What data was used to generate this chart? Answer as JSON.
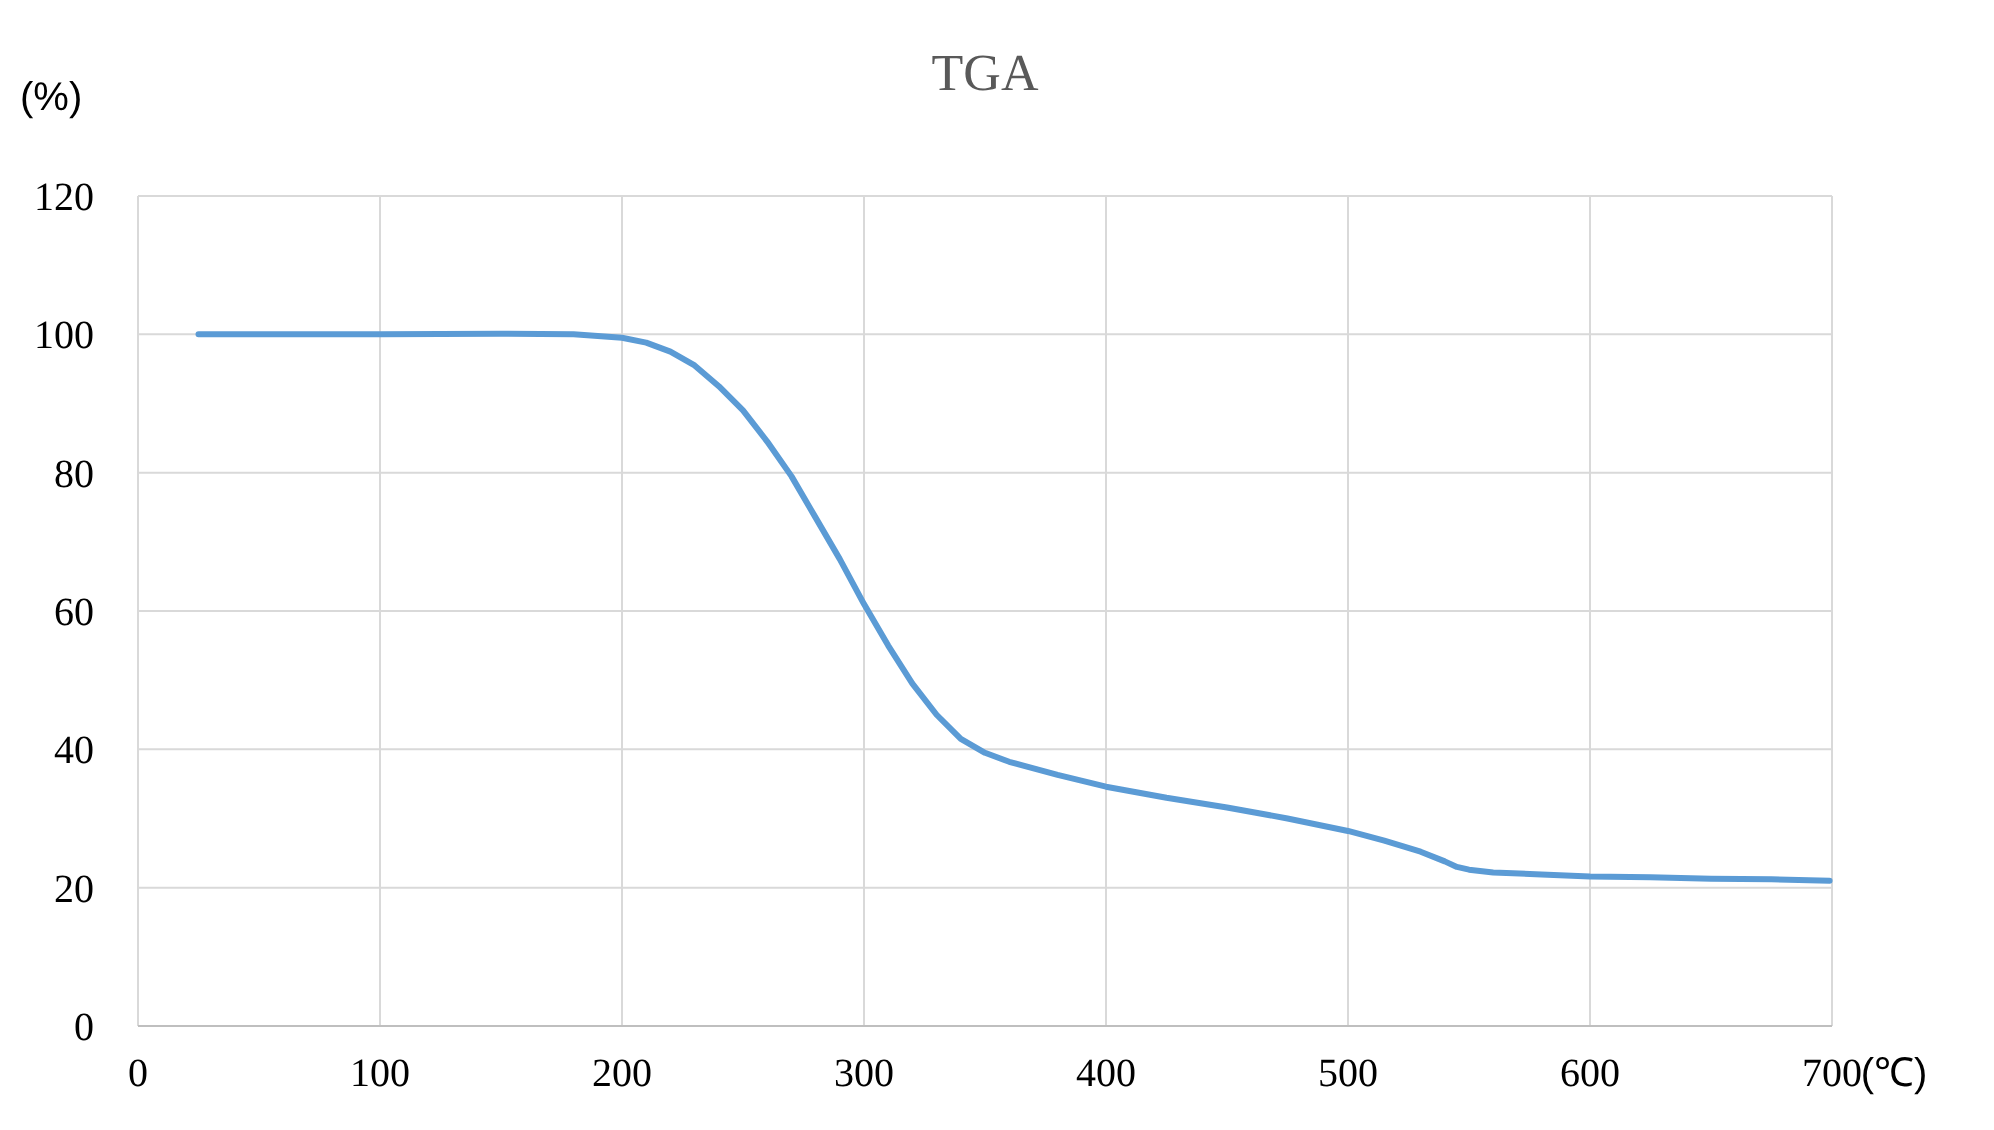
{
  "chart_data": {
    "type": "line",
    "title": "TGA",
    "xlabel": "(℃)",
    "ylabel": "(%)",
    "xlim": [
      0,
      700
    ],
    "xticks": [
      0,
      100,
      200,
      300,
      400,
      500,
      600,
      700
    ],
    "ylim": [
      0,
      120
    ],
    "yticks": [
      0,
      20,
      40,
      60,
      80,
      100,
      120
    ],
    "grid": true,
    "marker": "none",
    "line_style": "solid",
    "series": [
      {
        "color": "#5b9bd5",
        "x": [
          25,
          50,
          100,
          150,
          180,
          200,
          210,
          220,
          230,
          240,
          250,
          260,
          270,
          280,
          290,
          300,
          310,
          320,
          330,
          340,
          350,
          360,
          380,
          400,
          425,
          450,
          475,
          500,
          515,
          530,
          540,
          545,
          550,
          560,
          580,
          600,
          625,
          650,
          675,
          699
        ],
        "values": [
          100,
          100,
          100,
          100.1,
          100,
          99.5,
          98.8,
          97.5,
          95.5,
          92.5,
          89,
          84.5,
          79.5,
          73.5,
          67.5,
          61,
          55,
          49.5,
          45,
          41.5,
          39.5,
          38.2,
          36.3,
          34.6,
          33,
          31.6,
          30,
          28.2,
          26.8,
          25.2,
          23.8,
          23,
          22.6,
          22.2,
          21.9,
          21.6,
          21.5,
          21.3,
          21.2,
          21
        ]
      }
    ]
  }
}
